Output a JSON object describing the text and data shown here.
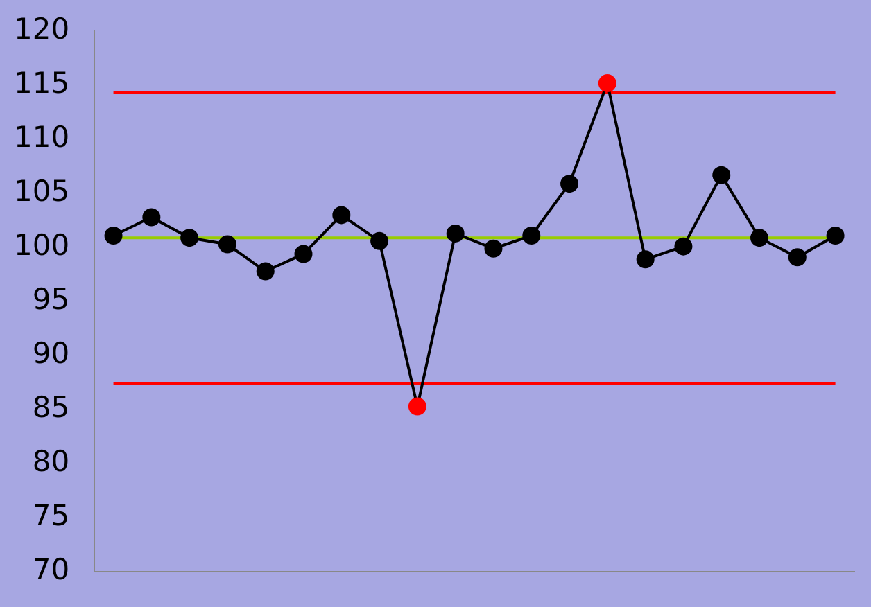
{
  "chart_data": {
    "type": "line",
    "categories": [
      null,
      null,
      null,
      null,
      null,
      null,
      null,
      null,
      null,
      null,
      null,
      null,
      null,
      null,
      null,
      null,
      null,
      null,
      null,
      null
    ],
    "series": [
      {
        "color": "#000000",
        "colors": [
          "#000000",
          "#000000",
          "#000000",
          "#000000",
          "#000000",
          "#000000",
          "#000000",
          "#000000",
          "#ff0000",
          "#000000",
          "#000000",
          "#000000",
          "#000000",
          "#ff0000",
          "#000000",
          "#000000",
          "#000000",
          "#000000",
          "#000000",
          "#000000"
        ],
        "values": [
          101.1,
          102.8,
          100.9,
          100.3,
          97.8,
          99.4,
          103.0,
          100.6,
          85.3,
          101.3,
          99.9,
          101.1,
          105.9,
          115.2,
          98.9,
          100.1,
          106.7,
          100.9,
          99.1,
          101.1
        ]
      }
    ],
    "ylim": [
      70,
      120
    ],
    "yticks": [
      70,
      75,
      80,
      85,
      90,
      95,
      100,
      105,
      110,
      115,
      120
    ],
    "ref_lines": [
      {
        "axis": "y",
        "value": 114.3,
        "color": "#ff0000"
      },
      {
        "axis": "y",
        "value": 100.9,
        "color": "#99cc00"
      },
      {
        "axis": "y",
        "value": 87.4,
        "color": "#ff0000"
      }
    ],
    "grid": false,
    "legend": false,
    "marker": "circle",
    "line_style": "solid"
  }
}
